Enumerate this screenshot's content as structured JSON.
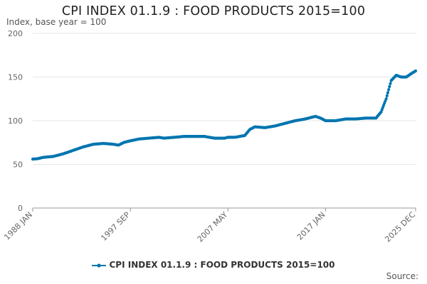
{
  "chart_data": {
    "type": "line",
    "title": "CPI INDEX 01.1.9 : FOOD PRODUCTS 2015=100",
    "ylabel": "Index, base year = 100",
    "xlabel": "",
    "ylim": [
      0,
      200
    ],
    "yticks": [
      0,
      50,
      100,
      150,
      200
    ],
    "x_range": [
      1988.0,
      2025.92
    ],
    "xtick_labels": [
      {
        "label": "1988 JAN",
        "year": 1988.0
      },
      {
        "label": "1997 SEP",
        "year": 1997.67
      },
      {
        "label": "2007 MAY",
        "year": 2007.33
      },
      {
        "label": "2017 JAN",
        "year": 2017.0
      },
      {
        "label": "2025 DEC",
        "year": 2025.92
      }
    ],
    "grid": true,
    "legend_position": "bottom",
    "series": [
      {
        "name": "CPI INDEX 01.1.9 : FOOD PRODUCTS 2015=100",
        "color": "#0075b0",
        "points": [
          [
            1988.0,
            56
          ],
          [
            1988.5,
            56.5
          ],
          [
            1989.0,
            58
          ],
          [
            1990.0,
            59
          ],
          [
            1991.0,
            62
          ],
          [
            1992.0,
            66
          ],
          [
            1992.5,
            68
          ],
          [
            1993.0,
            70
          ],
          [
            1994.0,
            73
          ],
          [
            1995.0,
            74
          ],
          [
            1996.0,
            73
          ],
          [
            1996.5,
            72
          ],
          [
            1997.0,
            75
          ],
          [
            1997.67,
            77
          ],
          [
            1998.5,
            79
          ],
          [
            1999.5,
            80
          ],
          [
            2000.5,
            81
          ],
          [
            2001.0,
            80
          ],
          [
            2002.0,
            81
          ],
          [
            2003.0,
            82
          ],
          [
            2004.0,
            82
          ],
          [
            2005.0,
            82
          ],
          [
            2006.0,
            80
          ],
          [
            2007.0,
            80
          ],
          [
            2007.33,
            81
          ],
          [
            2008.0,
            81
          ],
          [
            2009.0,
            83
          ],
          [
            2009.5,
            90
          ],
          [
            2010.0,
            93
          ],
          [
            2011.0,
            92
          ],
          [
            2012.0,
            94
          ],
          [
            2013.0,
            97
          ],
          [
            2014.0,
            100
          ],
          [
            2015.0,
            102
          ],
          [
            2016.0,
            105
          ],
          [
            2016.5,
            103
          ],
          [
            2017.0,
            100
          ],
          [
            2018.0,
            100
          ],
          [
            2019.0,
            102
          ],
          [
            2020.0,
            102
          ],
          [
            2021.0,
            103
          ],
          [
            2022.0,
            103
          ],
          [
            2022.5,
            110
          ],
          [
            2023.0,
            125
          ],
          [
            2023.5,
            146
          ],
          [
            2024.0,
            152
          ],
          [
            2024.5,
            150
          ],
          [
            2025.0,
            150
          ],
          [
            2025.5,
            154
          ],
          [
            2025.92,
            157
          ]
        ]
      }
    ],
    "source_label": "Source:"
  }
}
